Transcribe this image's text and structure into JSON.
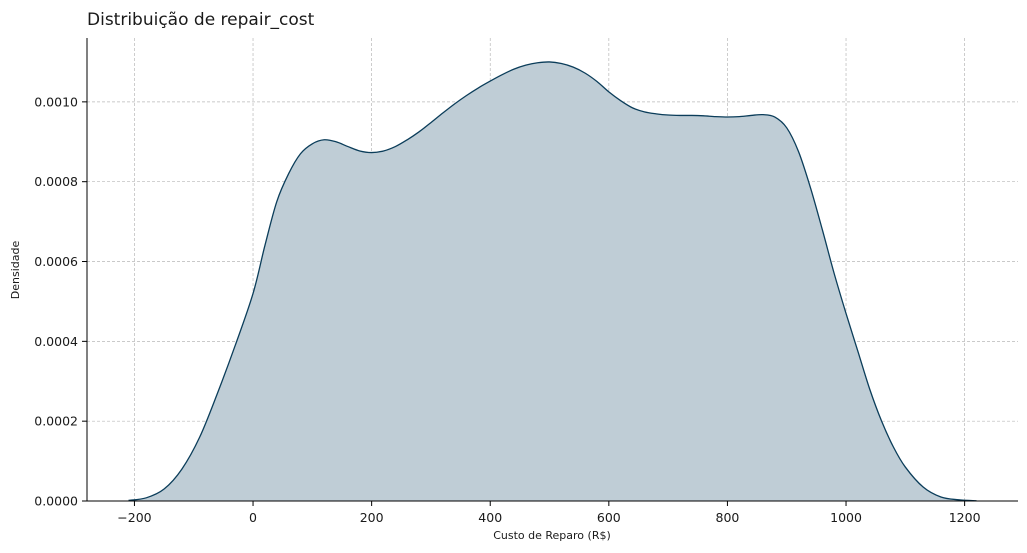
{
  "chart_data": {
    "type": "area",
    "title": "Distribuição de repair_cost",
    "xlabel": "Custo de Reparo (R$)",
    "ylabel": "Densidade",
    "xlim": [
      -280,
      1290
    ],
    "ylim": [
      0,
      0.00116
    ],
    "xticks": [
      -200,
      0,
      200,
      400,
      600,
      800,
      1000,
      1200
    ],
    "xtick_labels": [
      "−200",
      "0",
      "200",
      "400",
      "600",
      "800",
      "1000",
      "1200"
    ],
    "yticks": [
      0,
      0.0002,
      0.0004,
      0.0006,
      0.0008,
      0.001
    ],
    "ytick_labels": [
      "0.0000",
      "0.0002",
      "0.0004",
      "0.0006",
      "0.0008",
      "0.0010"
    ],
    "grid": true,
    "line_color": "#0b3d5a",
    "fill_color": "#bfcdd6",
    "series": [
      {
        "x": [
          -210,
          -180,
          -150,
          -120,
          -90,
          -60,
          -30,
          0,
          20,
          40,
          60,
          80,
          100,
          120,
          140,
          160,
          180,
          200,
          220,
          240,
          260,
          280,
          300,
          320,
          340,
          360,
          380,
          400,
          420,
          440,
          460,
          480,
          500,
          520,
          540,
          560,
          580,
          600,
          620,
          640,
          660,
          680,
          700,
          720,
          740,
          760,
          780,
          800,
          820,
          840,
          860,
          880,
          900,
          920,
          940,
          960,
          980,
          1000,
          1020,
          1040,
          1060,
          1080,
          1100,
          1130,
          1160,
          1190,
          1220
        ],
        "y": [
          1.5e-06,
          8e-06,
          3e-05,
          8e-05,
          0.00016,
          0.00027,
          0.00039,
          0.00052,
          0.00064,
          0.00075,
          0.00082,
          0.00087,
          0.000895,
          0.000905,
          0.0009,
          0.000888,
          0.000877,
          0.000873,
          0.000877,
          0.000888,
          0.000905,
          0.000925,
          0.000948,
          0.000972,
          0.000995,
          0.001016,
          0.001035,
          0.001052,
          0.001068,
          0.001082,
          0.001092,
          0.001098,
          0.0011,
          0.001096,
          0.001087,
          0.001072,
          0.001051,
          0.001025,
          0.001003,
          0.000985,
          0.000975,
          0.00097,
          0.000967,
          0.000966,
          0.000966,
          0.000965,
          0.000963,
          0.000962,
          0.000963,
          0.000966,
          0.000968,
          0.000962,
          0.000935,
          0.000875,
          0.000785,
          0.00068,
          0.00057,
          0.00047,
          0.000375,
          0.00028,
          0.0002,
          0.000135,
          8.5e-05,
          3.5e-05,
          1e-05,
          3e-06,
          5e-07
        ]
      }
    ]
  }
}
